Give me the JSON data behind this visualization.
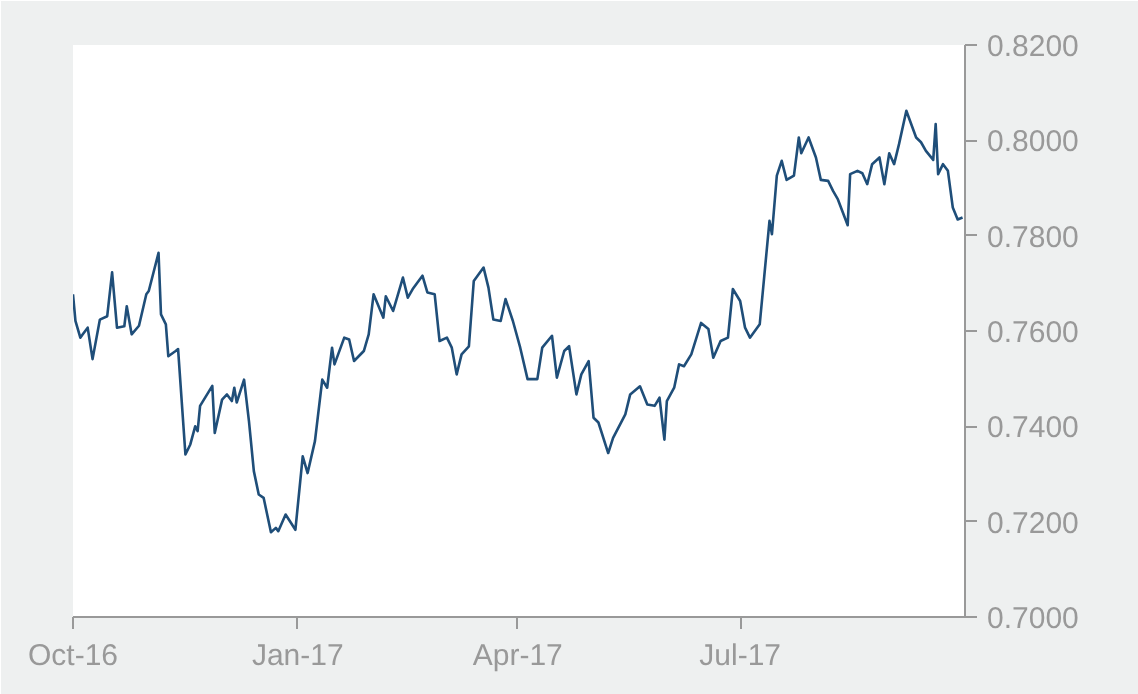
{
  "chart_data": {
    "type": "line",
    "x": [
      "2016-10-01",
      "2016-10-02",
      "2016-10-04",
      "2016-10-05",
      "2016-10-07",
      "2016-10-09",
      "2016-10-12",
      "2016-10-15",
      "2016-10-17",
      "2016-10-19",
      "2016-10-22",
      "2016-10-23",
      "2016-10-25",
      "2016-10-28",
      "2016-10-31",
      "2016-11-01",
      "2016-11-05",
      "2016-11-06",
      "2016-11-08",
      "2016-11-09",
      "2016-11-12",
      "2016-11-13",
      "2016-11-16",
      "2016-11-18",
      "2016-11-20",
      "2016-11-21",
      "2016-11-22",
      "2016-11-27",
      "2016-11-28",
      "2016-12-01",
      "2016-12-03",
      "2016-12-05",
      "2016-12-06",
      "2016-12-07",
      "2016-12-10",
      "2016-12-12",
      "2016-12-14",
      "2016-12-16",
      "2016-12-18",
      "2016-12-21",
      "2016-12-23",
      "2016-12-24",
      "2016-12-27",
      "2016-12-31",
      "2017-01-03",
      "2017-01-05",
      "2017-01-08",
      "2017-01-11",
      "2017-01-13",
      "2017-01-15",
      "2017-01-16",
      "2017-01-20",
      "2017-01-22",
      "2017-01-24",
      "2017-01-28",
      "2017-01-30",
      "2017-02-01",
      "2017-02-05",
      "2017-02-06",
      "2017-02-09",
      "2017-02-13",
      "2017-02-15",
      "2017-02-17",
      "2017-02-21",
      "2017-02-23",
      "2017-02-26",
      "2017-02-28",
      "2017-03-03",
      "2017-03-05",
      "2017-03-07",
      "2017-03-09",
      "2017-03-12",
      "2017-03-14",
      "2017-03-18",
      "2017-03-20",
      "2017-03-22",
      "2017-03-25",
      "2017-03-27",
      "2017-03-30",
      "2017-04-02",
      "2017-04-05",
      "2017-04-09",
      "2017-04-11",
      "2017-04-15",
      "2017-04-17",
      "2017-04-20",
      "2017-04-22",
      "2017-04-25",
      "2017-04-27",
      "2017-04-30",
      "2017-05-02",
      "2017-05-04",
      "2017-05-08",
      "2017-05-10",
      "2017-05-15",
      "2017-05-17",
      "2017-05-21",
      "2017-05-24",
      "2017-05-27",
      "2017-05-29",
      "2017-05-31",
      "2017-06-01",
      "2017-06-04",
      "2017-06-06",
      "2017-06-08",
      "2017-06-11",
      "2017-06-15",
      "2017-06-18",
      "2017-06-20",
      "2017-06-23",
      "2017-06-26",
      "2017-06-28",
      "2017-07-01",
      "2017-07-03",
      "2017-07-05",
      "2017-07-09",
      "2017-07-13",
      "2017-07-14",
      "2017-07-16",
      "2017-07-18",
      "2017-07-20",
      "2017-07-23",
      "2017-07-25",
      "2017-07-26",
      "2017-07-29",
      "2017-08-01",
      "2017-08-03",
      "2017-08-06",
      "2017-08-08",
      "2017-08-10",
      "2017-08-14",
      "2017-08-15",
      "2017-08-18",
      "2017-08-20",
      "2017-08-22",
      "2017-08-24",
      "2017-08-27",
      "2017-08-29",
      "2017-08-31",
      "2017-09-02",
      "2017-09-04",
      "2017-09-07",
      "2017-09-08",
      "2017-09-11",
      "2017-09-13",
      "2017-09-15",
      "2017-09-18",
      "2017-09-19",
      "2017-09-20",
      "2017-09-22",
      "2017-09-24",
      "2017-09-26",
      "2017-09-28",
      "2017-09-30"
    ],
    "series": [
      {
        "color": "#1f4e79",
        "values": [
          0.7677,
          0.7621,
          0.7586,
          0.7593,
          0.7607,
          0.7541,
          0.7624,
          0.7631,
          0.7723,
          0.7607,
          0.761,
          0.7652,
          0.7593,
          0.7611,
          0.7677,
          0.7684,
          0.7764,
          0.7635,
          0.7614,
          0.7547,
          0.7558,
          0.7562,
          0.7341,
          0.7362,
          0.74,
          0.739,
          0.7443,
          0.7485,
          0.7386,
          0.7456,
          0.7467,
          0.7453,
          0.7481,
          0.745,
          0.7498,
          0.7411,
          0.7306,
          0.7257,
          0.725,
          0.7178,
          0.7187,
          0.718,
          0.7215,
          0.7183,
          0.7337,
          0.7302,
          0.7369,
          0.7498,
          0.7481,
          0.7565,
          0.753,
          0.7586,
          0.7582,
          0.7537,
          0.7558,
          0.7593,
          0.7677,
          0.7628,
          0.7673,
          0.7642,
          0.7712,
          0.767,
          0.7688,
          0.7716,
          0.7681,
          0.7677,
          0.7579,
          0.7586,
          0.7565,
          0.7509,
          0.7551,
          0.7568,
          0.7705,
          0.7733,
          0.7691,
          0.7624,
          0.7621,
          0.7667,
          0.7621,
          0.7565,
          0.7499,
          0.7499,
          0.7565,
          0.759,
          0.7502,
          0.7558,
          0.7568,
          0.7467,
          0.7509,
          0.7537,
          0.7418,
          0.7408,
          0.7344,
          0.7376,
          0.7425,
          0.7467,
          0.7484,
          0.7446,
          0.7443,
          0.746,
          0.7372,
          0.7453,
          0.7481,
          0.753,
          0.7526,
          0.7551,
          0.7617,
          0.7604,
          0.7544,
          0.7579,
          0.7586,
          0.7688,
          0.7663,
          0.7607,
          0.7586,
          0.7614,
          0.7831,
          0.7803,
          0.7926,
          0.7957,
          0.7917,
          0.7926,
          0.8006,
          0.7973,
          0.8006,
          0.7964,
          0.7917,
          0.7915,
          0.7894,
          0.7876,
          0.7822,
          0.7929,
          0.7936,
          0.7931,
          0.7908,
          0.795,
          0.7964,
          0.7908,
          0.7973,
          0.795,
          0.7992,
          0.8062,
          0.8048,
          0.8006,
          0.7996,
          0.7978,
          0.7959,
          0.8034,
          0.7929,
          0.795,
          0.7936,
          0.7859,
          0.7834,
          0.7838
        ]
      }
    ],
    "xlim": [
      "2016-10-01",
      "2017-10-01"
    ],
    "xticks": [
      {
        "value": "2016-10-01",
        "label": "Oct-16"
      },
      {
        "value": "2017-01-01",
        "label": "Jan-17"
      },
      {
        "value": "2017-04-01",
        "label": "Apr-17"
      },
      {
        "value": "2017-07-01",
        "label": "Jul-17"
      }
    ],
    "ylim": [
      0.7,
      0.82
    ],
    "yticks": [
      {
        "value": 0.7,
        "label": "0.7000"
      },
      {
        "value": 0.72,
        "label": "0.7200"
      },
      {
        "value": 0.74,
        "label": "0.7400"
      },
      {
        "value": 0.76,
        "label": "0.7600"
      },
      {
        "value": 0.78,
        "label": "0.7800"
      },
      {
        "value": 0.8,
        "label": "0.8000"
      },
      {
        "value": 0.82,
        "label": "0.8200"
      }
    ],
    "line_style": "solid"
  }
}
